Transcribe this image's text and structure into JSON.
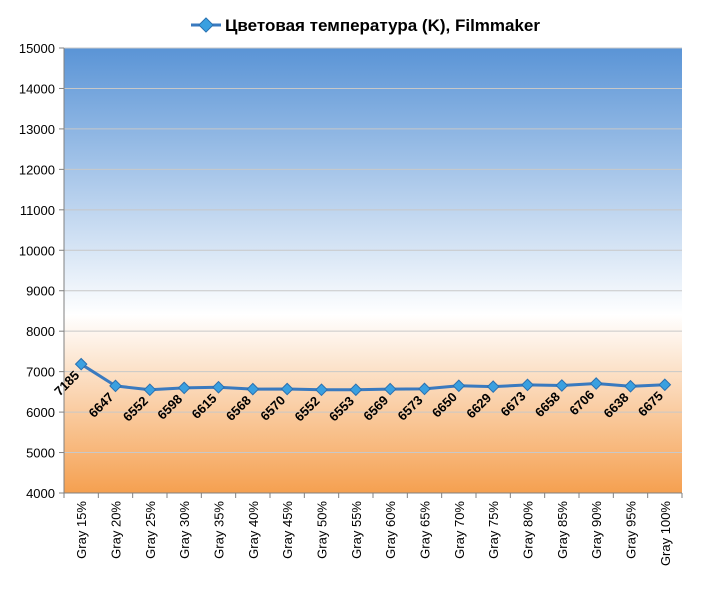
{
  "chart_data": {
    "type": "line",
    "title": "Цветовая температура (K), Filmmaker",
    "categories": [
      "Gray 15%",
      "Gray 20%",
      "Gray 25%",
      "Gray 30%",
      "Gray 35%",
      "Gray 40%",
      "Gray 45%",
      "Gray 50%",
      "Gray 55%",
      "Gray 60%",
      "Gray 65%",
      "Gray 70%",
      "Gray 75%",
      "Gray 80%",
      "Gray 85%",
      "Gray 90%",
      "Gray 95%",
      "Gray 100%"
    ],
    "series": [
      {
        "name": "Цветовая температура (K), Filmmaker",
        "values": [
          7185,
          6647,
          6552,
          6598,
          6615,
          6568,
          6570,
          6552,
          6553,
          6569,
          6573,
          6650,
          6629,
          6673,
          6658,
          6706,
          6638,
          6675
        ],
        "color": "#3a7abf",
        "marker_color": "#3aa0e0"
      }
    ],
    "ylim": [
      4000,
      15000
    ],
    "yticks": [
      4000,
      5000,
      6000,
      7000,
      8000,
      9000,
      10000,
      11000,
      12000,
      13000,
      14000,
      15000
    ],
    "grid": true,
    "legend": "top",
    "background": {
      "top": "#5a94d6",
      "middle": "#ffffff",
      "bottom": "#f5a050"
    }
  }
}
